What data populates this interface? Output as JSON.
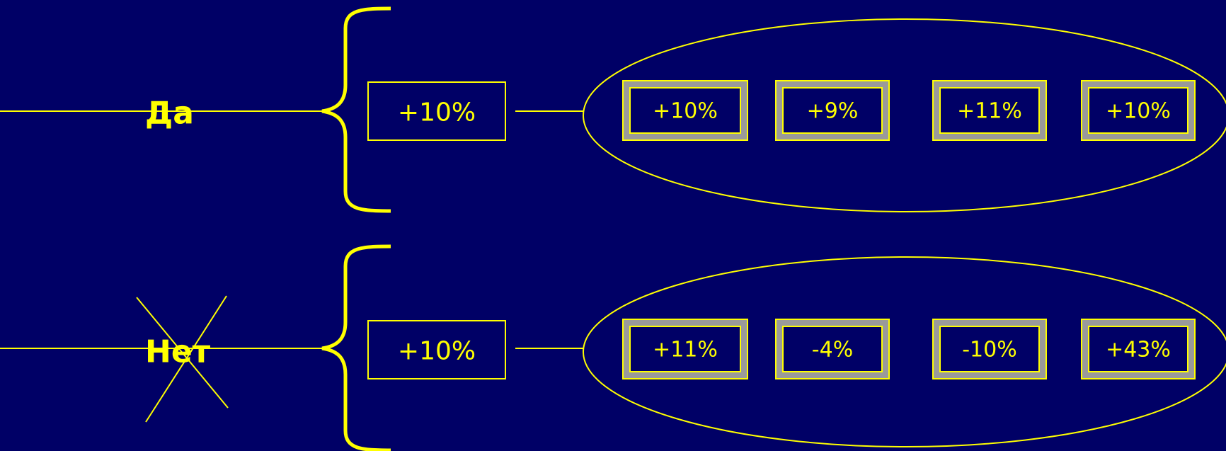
{
  "colors": {
    "background": "#000066",
    "accent": "#ffff00",
    "bevel_light": "#9a9a9a",
    "bevel_dark": "#666666"
  },
  "rows": [
    {
      "label": "Да",
      "crossed_out": false,
      "summary": "+10%",
      "values": [
        "+10%",
        "+9%",
        "+11%",
        "+10%"
      ]
    },
    {
      "label": "Нет",
      "crossed_out": true,
      "summary": "+10%",
      "values": [
        "+11%",
        "-4%",
        "-10%",
        "+43%"
      ]
    }
  ]
}
